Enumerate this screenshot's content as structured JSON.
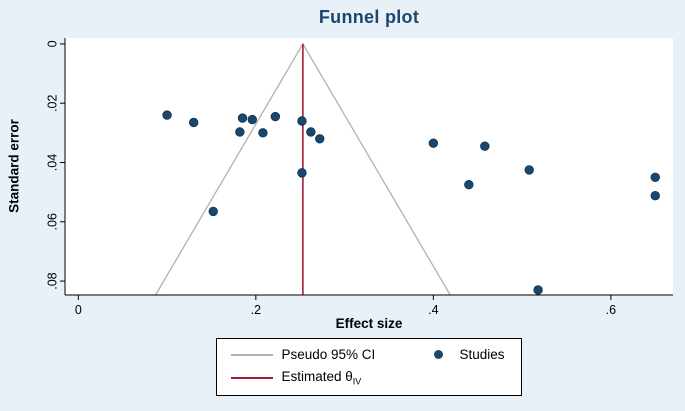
{
  "chart_data": {
    "type": "scatter",
    "title": "Funnel plot",
    "xlabel": "Effect size",
    "ylabel": "Standard error",
    "x_axis": {
      "min": -0.015,
      "max": 0.67,
      "ticks": [
        0,
        0.2,
        0.4,
        0.6
      ],
      "tick_labels": [
        "0",
        ".2",
        ".4",
        ".6"
      ]
    },
    "y_axis": {
      "min": -0.002,
      "max": 0.0847,
      "ticks": [
        0,
        0.02,
        0.04,
        0.06,
        0.08
      ],
      "tick_labels": [
        "0",
        ".02",
        ".04",
        ".06",
        ".08"
      ],
      "reversed": true
    },
    "grid": false,
    "series": [
      {
        "name": "Studies",
        "marker": "dot",
        "color": "#1a476f",
        "points": [
          [
            0.1,
            0.024
          ],
          [
            0.13,
            0.0265
          ],
          [
            0.152,
            0.0565
          ],
          [
            0.182,
            0.0297
          ],
          [
            0.185,
            0.025
          ],
          [
            0.196,
            0.0255
          ],
          [
            0.208,
            0.03
          ],
          [
            0.222,
            0.0245
          ],
          [
            0.252,
            0.026
          ],
          [
            0.262,
            0.0297
          ],
          [
            0.272,
            0.032
          ],
          [
            0.252,
            0.0435
          ],
          [
            0.4,
            0.0335
          ],
          [
            0.44,
            0.0475
          ],
          [
            0.458,
            0.0345
          ],
          [
            0.508,
            0.0425
          ],
          [
            0.518,
            0.083
          ],
          [
            0.65,
            0.045
          ],
          [
            0.65,
            0.0512
          ]
        ]
      }
    ],
    "funnel": {
      "center": 0.253,
      "z": 1.96,
      "color": "#b1b1b1",
      "label": "Pseudo 95% CI"
    },
    "estimate_line": {
      "x": 0.253,
      "color": "#a51c30",
      "label": "Estimated θ",
      "label_sub": "IV"
    },
    "legend": {
      "position": "bottom",
      "items": [
        {
          "label": "Pseudo 95% CI",
          "marker": "line",
          "color": "#b1b1b1"
        },
        {
          "label": "Studies",
          "marker": "dot",
          "color": "#1a476f"
        },
        {
          "label": "Estimated θ",
          "label_sub": "IV",
          "marker": "line",
          "color": "#a51c30"
        }
      ]
    }
  },
  "colors": {
    "figure_background": "#e8f0f8",
    "plot_background": "#ffffff",
    "title_text": "#1a476f",
    "axis_text": "#000000"
  }
}
